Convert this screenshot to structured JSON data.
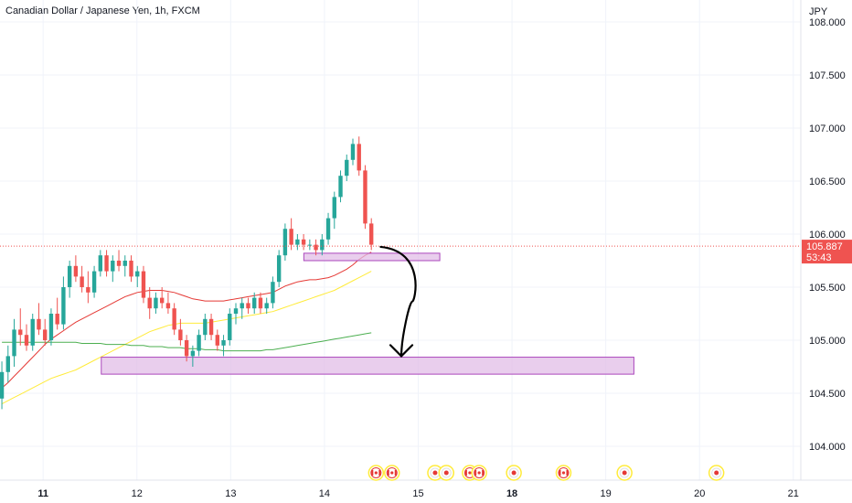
{
  "colors": {
    "up": "#26a69a",
    "down": "#ef5350",
    "ma_fast": "#e53935",
    "ma_slow": "#ffeb3b",
    "ma_long": "#4caf50",
    "zone_fill": "#e1bee7",
    "zone_border": "#ab47bc",
    "price_line": "#ef5350",
    "grid": "#f0f3fa",
    "last_price_bg": "#ef5350",
    "event_ring": "#ffeb3b"
  },
  "chart_data": {
    "type": "candlestick",
    "title": "Canadian Dollar / Japanese Yen, 1h, FXCM",
    "currency": "JPY",
    "ylim": [
      103.75,
      108.05
    ],
    "grid": true,
    "y_ticks": [
      "108.000",
      "107.500",
      "107.000",
      "106.500",
      "106.000",
      "105.500",
      "105.000",
      "104.500",
      "104.000"
    ],
    "y_tick_values": [
      108.0,
      107.5,
      107.0,
      106.5,
      106.0,
      105.5,
      105.0,
      104.5,
      104.0
    ],
    "x_ticks": [
      {
        "label": "11",
        "t": 0,
        "bold": true
      },
      {
        "label": "12",
        "t": 1,
        "bold": false
      },
      {
        "label": "13",
        "t": 2,
        "bold": false
      },
      {
        "label": "14",
        "t": 3,
        "bold": false
      },
      {
        "label": "15",
        "t": 4,
        "bold": false
      },
      {
        "label": "18",
        "t": 5,
        "bold": true
      },
      {
        "label": "19",
        "t": 6,
        "bold": false
      },
      {
        "label": "20",
        "t": 7,
        "bold": false
      },
      {
        "label": "21",
        "t": 8,
        "bold": false
      }
    ],
    "x_range": [
      -0.46,
      8.08
    ],
    "last_price": "105.887",
    "last_price_value": 105.887,
    "countdown": "53:43",
    "candles": [
      [
        104.45,
        104.8,
        104.35,
        104.7
      ],
      [
        104.7,
        104.95,
        104.6,
        104.85
      ],
      [
        104.85,
        105.2,
        104.75,
        105.1
      ],
      [
        105.1,
        105.3,
        104.95,
        105.05
      ],
      [
        105.05,
        105.15,
        104.9,
        104.95
      ],
      [
        104.95,
        105.25,
        104.9,
        105.2
      ],
      [
        105.2,
        105.35,
        105.05,
        105.1
      ],
      [
        105.1,
        105.2,
        104.95,
        105.0
      ],
      [
        105.0,
        105.3,
        104.95,
        105.25
      ],
      [
        105.25,
        105.4,
        105.1,
        105.15
      ],
      [
        105.15,
        105.6,
        105.1,
        105.5
      ],
      [
        105.5,
        105.75,
        105.4,
        105.7
      ],
      [
        105.7,
        105.8,
        105.55,
        105.6
      ],
      [
        105.6,
        105.7,
        105.45,
        105.5
      ],
      [
        105.5,
        105.65,
        105.35,
        105.45
      ],
      [
        105.45,
        105.7,
        105.4,
        105.65
      ],
      [
        105.65,
        105.85,
        105.6,
        105.8
      ],
      [
        105.8,
        105.85,
        105.6,
        105.65
      ],
      [
        105.65,
        105.8,
        105.55,
        105.75
      ],
      [
        105.75,
        105.85,
        105.65,
        105.7
      ],
      [
        105.7,
        105.8,
        105.6,
        105.75
      ],
      [
        105.75,
        105.8,
        105.55,
        105.6
      ],
      [
        105.6,
        105.7,
        105.5,
        105.65
      ],
      [
        105.65,
        105.7,
        105.35,
        105.4
      ],
      [
        105.4,
        105.5,
        105.2,
        105.3
      ],
      [
        105.3,
        105.45,
        105.25,
        105.4
      ],
      [
        105.4,
        105.5,
        105.3,
        105.35
      ],
      [
        105.35,
        105.45,
        105.25,
        105.3
      ],
      [
        105.3,
        105.35,
        105.05,
        105.1
      ],
      [
        105.1,
        105.2,
        104.95,
        105.0
      ],
      [
        105.0,
        105.05,
        104.8,
        104.85
      ],
      [
        104.85,
        104.95,
        104.75,
        104.9
      ],
      [
        104.9,
        105.1,
        104.85,
        105.05
      ],
      [
        105.05,
        105.25,
        105.0,
        105.2
      ],
      [
        105.2,
        105.25,
        105.0,
        105.05
      ],
      [
        105.05,
        105.1,
        104.9,
        104.95
      ],
      [
        104.95,
        105.05,
        104.85,
        105.0
      ],
      [
        105.0,
        105.3,
        104.95,
        105.25
      ],
      [
        105.25,
        105.35,
        105.15,
        105.3
      ],
      [
        105.3,
        105.4,
        105.2,
        105.35
      ],
      [
        105.35,
        105.4,
        105.25,
        105.3
      ],
      [
        105.3,
        105.45,
        105.25,
        105.4
      ],
      [
        105.4,
        105.45,
        105.25,
        105.3
      ],
      [
        105.3,
        105.4,
        105.25,
        105.35
      ],
      [
        105.35,
        105.6,
        105.3,
        105.55
      ],
      [
        105.55,
        105.85,
        105.5,
        105.8
      ],
      [
        105.8,
        106.1,
        105.75,
        106.05
      ],
      [
        106.05,
        106.15,
        105.85,
        105.9
      ],
      [
        105.9,
        106.0,
        105.85,
        105.95
      ],
      [
        105.95,
        106.0,
        105.85,
        105.9
      ],
      [
        105.9,
        105.95,
        105.85,
        105.9
      ],
      [
        105.9,
        105.95,
        105.8,
        105.85
      ],
      [
        105.85,
        106.0,
        105.8,
        105.95
      ],
      [
        105.95,
        106.2,
        105.9,
        106.15
      ],
      [
        106.15,
        106.4,
        106.05,
        106.35
      ],
      [
        106.35,
        106.6,
        106.3,
        106.55
      ],
      [
        106.55,
        106.75,
        106.5,
        106.7
      ],
      [
        106.7,
        106.9,
        106.65,
        106.85
      ],
      [
        106.85,
        106.92,
        106.55,
        106.6
      ],
      [
        106.6,
        106.65,
        106.05,
        106.1
      ],
      [
        106.1,
        106.15,
        105.85,
        105.9
      ]
    ],
    "ma_fast": [
      104.55,
      104.6,
      104.66,
      104.72,
      104.78,
      104.84,
      104.9,
      104.96,
      105.01,
      105.05,
      105.09,
      105.13,
      105.17,
      105.2,
      105.23,
      105.26,
      105.29,
      105.32,
      105.35,
      105.38,
      105.41,
      105.43,
      105.45,
      105.46,
      105.47,
      105.47,
      105.47,
      105.46,
      105.45,
      105.43,
      105.41,
      105.39,
      105.38,
      105.37,
      105.37,
      105.37,
      105.37,
      105.38,
      105.39,
      105.4,
      105.41,
      105.42,
      105.43,
      105.44,
      105.45,
      105.48,
      105.51,
      105.53,
      105.55,
      105.56,
      105.57,
      105.57,
      105.58,
      105.59,
      105.61,
      105.64,
      105.67,
      105.71,
      105.76,
      105.8,
      105.83
    ],
    "ma_slow": [
      104.4,
      104.43,
      104.46,
      104.49,
      104.52,
      104.55,
      104.58,
      104.61,
      104.64,
      104.66,
      104.68,
      104.7,
      104.72,
      104.75,
      104.78,
      104.81,
      104.84,
      104.87,
      104.9,
      104.93,
      104.96,
      104.99,
      105.02,
      105.05,
      105.08,
      105.1,
      105.12,
      105.14,
      105.15,
      105.16,
      105.16,
      105.16,
      105.16,
      105.16,
      105.17,
      105.18,
      105.19,
      105.2,
      105.21,
      105.22,
      105.23,
      105.24,
      105.25,
      105.26,
      105.27,
      105.29,
      105.31,
      105.33,
      105.35,
      105.37,
      105.39,
      105.41,
      105.43,
      105.45,
      105.47,
      105.5,
      105.53,
      105.56,
      105.59,
      105.62,
      105.65
    ],
    "ma_long": [
      104.98,
      104.98,
      104.98,
      104.98,
      104.98,
      104.98,
      104.98,
      104.98,
      104.98,
      104.98,
      104.98,
      104.98,
      104.98,
      104.97,
      104.97,
      104.97,
      104.97,
      104.96,
      104.96,
      104.96,
      104.96,
      104.95,
      104.95,
      104.95,
      104.94,
      104.94,
      104.94,
      104.93,
      104.93,
      104.93,
      104.92,
      104.92,
      104.92,
      104.91,
      104.91,
      104.91,
      104.9,
      104.9,
      104.9,
      104.9,
      104.9,
      104.9,
      104.9,
      104.91,
      104.91,
      104.92,
      104.93,
      104.94,
      104.95,
      104.96,
      104.97,
      104.98,
      104.99,
      105.0,
      105.01,
      105.02,
      105.03,
      105.04,
      105.05,
      105.06,
      105.07
    ],
    "zones": [
      {
        "t_start": 2.78,
        "t_end": 4.23,
        "top": 105.82,
        "bottom": 105.75
      },
      {
        "t_start": 0.62,
        "t_end": 6.3,
        "top": 104.84,
        "bottom": 104.68
      }
    ],
    "arrow": {
      "t_start": 3.6,
      "p_start": 105.88,
      "t_end": 3.82,
      "p_end": 104.85
    },
    "events": [
      {
        "t": 3.55,
        "kind": "flag-ca"
      },
      {
        "t": 3.72,
        "kind": "flag-ca"
      },
      {
        "t": 4.18,
        "kind": "dot"
      },
      {
        "t": 4.3,
        "kind": "dot-ring"
      },
      {
        "t": 4.55,
        "kind": "flag-ca"
      },
      {
        "t": 4.65,
        "kind": "flag-ca"
      },
      {
        "t": 5.02,
        "kind": "dot"
      },
      {
        "t": 5.55,
        "kind": "flag-ca"
      },
      {
        "t": 6.2,
        "kind": "dot"
      },
      {
        "t": 7.18,
        "kind": "dot"
      }
    ]
  }
}
